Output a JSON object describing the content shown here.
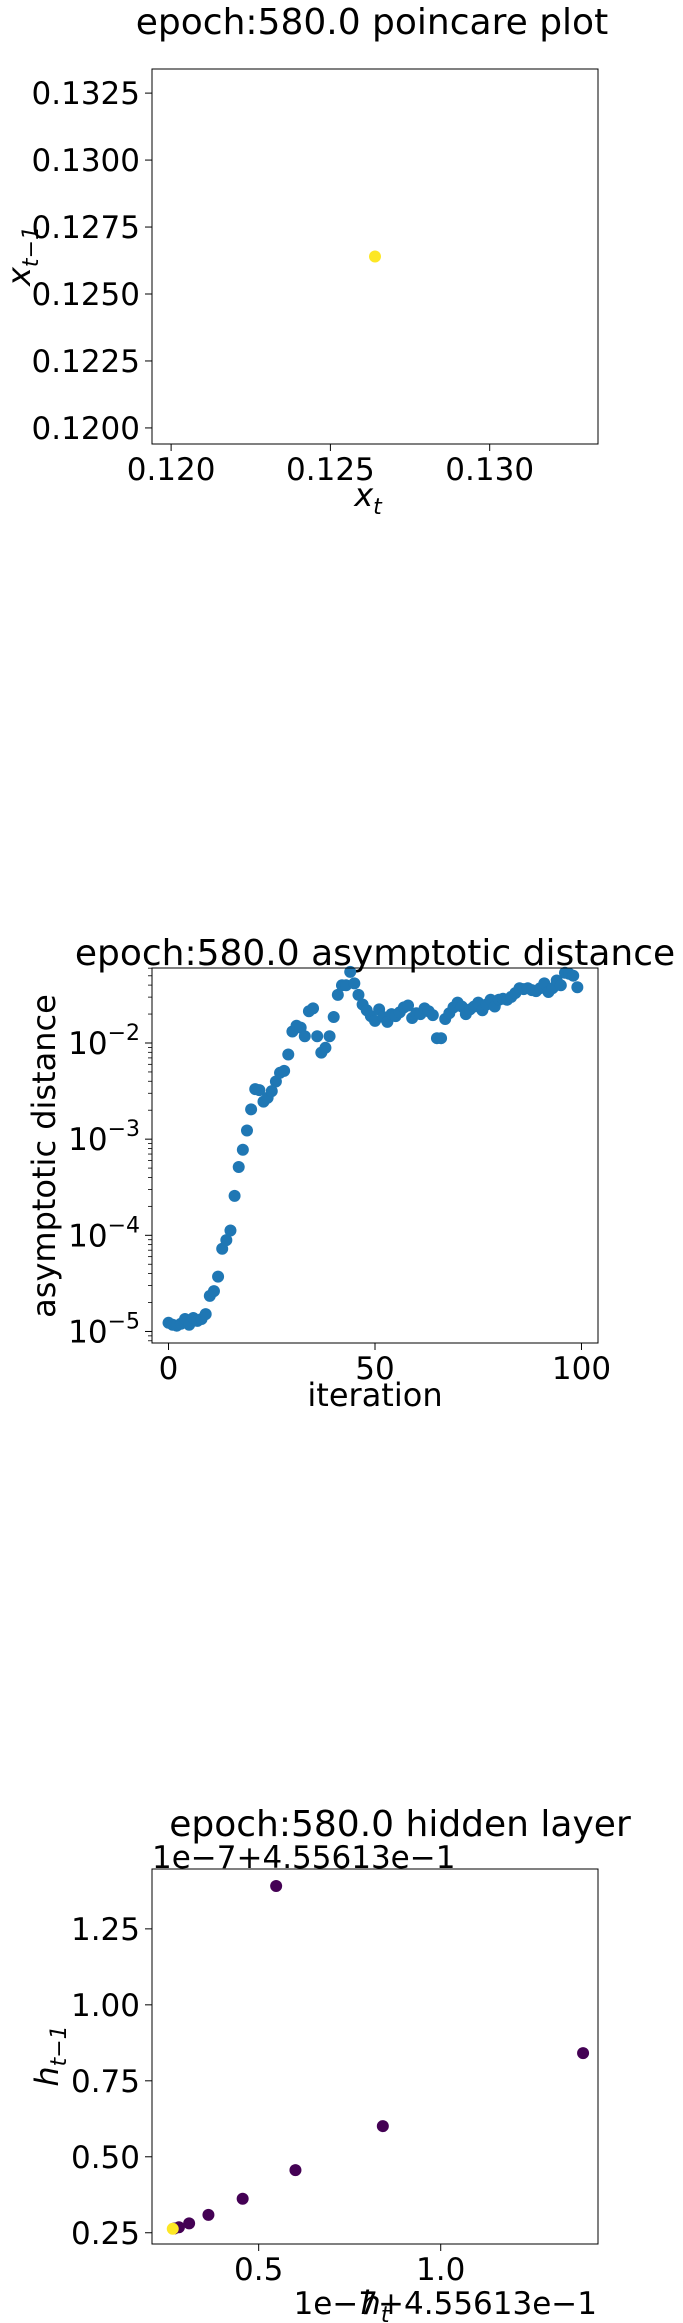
{
  "colors": {
    "yellow": "#fde725",
    "blue": "#1f77b4",
    "purple": "#440154"
  },
  "chart_data": [
    {
      "type": "scatter",
      "title": "epoch:580.0 poincare plot",
      "xlabel": "x",
      "xlabel_sub": "t",
      "ylabel": "x",
      "ylabel_sub": "t−1",
      "xlim": [
        0.1194,
        0.1334
      ],
      "ylim": [
        0.1194,
        0.1334
      ],
      "xticks": [
        0.12,
        0.125,
        0.13
      ],
      "xtick_labels": [
        "0.120",
        "0.125",
        "0.130"
      ],
      "yticks": [
        0.12,
        0.1225,
        0.125,
        0.1275,
        0.13,
        0.1325
      ],
      "ytick_labels": [
        "0.1200",
        "0.1225",
        "0.1250",
        "0.1275",
        "0.1300",
        "0.1325"
      ],
      "points": [
        {
          "x": 0.1264,
          "y": 0.1264,
          "color": "yellow"
        }
      ]
    },
    {
      "type": "scatter",
      "title": "epoch:580.0 asymptotic distance",
      "xlabel": "iteration",
      "ylabel": "asymptotic distance",
      "yscale": "log",
      "xlim": [
        -4,
        104
      ],
      "ylim_log10": [
        -5.12,
        -1.22
      ],
      "xticks": [
        0,
        50,
        100
      ],
      "xtick_labels": [
        "0",
        "50",
        "100"
      ],
      "yticks_log10": [
        -5,
        -4,
        -3,
        -2
      ],
      "ytick_base": "10",
      "ytick_exponents": [
        "−5",
        "−4",
        "−3",
        "−2"
      ],
      "series_color": "blue",
      "x": [
        0,
        1,
        2,
        3,
        4,
        5,
        6,
        7,
        8,
        9,
        10,
        11,
        12,
        13,
        14,
        15,
        16,
        17,
        18,
        19,
        20,
        21,
        22,
        23,
        24,
        25,
        26,
        27,
        28,
        29,
        30,
        31,
        32,
        33,
        34,
        35,
        36,
        37,
        38,
        39,
        40,
        41,
        42,
        43,
        44,
        45,
        46,
        47,
        48,
        49,
        50,
        51,
        52,
        53,
        54,
        55,
        56,
        57,
        58,
        59,
        60,
        61,
        62,
        63,
        64,
        65,
        66,
        67,
        68,
        69,
        70,
        71,
        72,
        73,
        74,
        75,
        76,
        77,
        78,
        79,
        80,
        81,
        82,
        83,
        84,
        85,
        86,
        87,
        88,
        89,
        90,
        91,
        92,
        93,
        94,
        95,
        96,
        97,
        98,
        99
      ],
      "y_log10": [
        -4.91,
        -4.93,
        -4.94,
        -4.92,
        -4.87,
        -4.93,
        -4.86,
        -4.89,
        -4.87,
        -4.82,
        -4.63,
        -4.58,
        -4.43,
        -4.14,
        -4.05,
        -3.95,
        -3.59,
        -3.29,
        -3.11,
        -2.91,
        -2.69,
        -2.48,
        -2.49,
        -2.61,
        -2.57,
        -2.5,
        -2.4,
        -2.31,
        -2.29,
        -2.12,
        -1.88,
        -1.82,
        -1.84,
        -1.93,
        -1.67,
        -1.64,
        -1.93,
        -2.1,
        -2.05,
        -1.93,
        -1.73,
        -1.5,
        -1.4,
        -1.4,
        -1.26,
        -1.38,
        -1.5,
        -1.6,
        -1.66,
        -1.72,
        -1.77,
        -1.65,
        -1.73,
        -1.78,
        -1.7,
        -1.72,
        -1.68,
        -1.63,
        -1.61,
        -1.74,
        -1.69,
        -1.7,
        -1.64,
        -1.67,
        -1.71,
        -1.95,
        -1.95,
        -1.75,
        -1.69,
        -1.63,
        -1.58,
        -1.62,
        -1.7,
        -1.65,
        -1.62,
        -1.58,
        -1.66,
        -1.6,
        -1.55,
        -1.62,
        -1.55,
        -1.54,
        -1.55,
        -1.52,
        -1.48,
        -1.43,
        -1.44,
        -1.43,
        -1.45,
        -1.46,
        -1.43,
        -1.38,
        -1.47,
        -1.43,
        -1.35,
        -1.4,
        -1.27,
        -1.28,
        -1.3,
        -1.42
      ]
    },
    {
      "type": "scatter",
      "title": "epoch:580.0 hidden layer",
      "offset_text": "1e−7+4.55613e−1",
      "xlabel": "h",
      "xlabel_sub": "t",
      "ylabel": "h",
      "ylabel_sub": "t−1",
      "xlim": [
        0.207,
        1.432
      ],
      "ylim": [
        0.213,
        1.447
      ],
      "xticks": [
        0.5,
        1.0
      ],
      "xtick_labels": [
        "0.5",
        "1.0"
      ],
      "yticks": [
        0.25,
        0.5,
        0.75,
        1.0,
        1.25
      ],
      "ytick_labels": [
        "0.25",
        "0.50",
        "0.75",
        "1.00",
        "1.25"
      ],
      "points": [
        {
          "x": 0.548,
          "y": 1.391,
          "color": "purple"
        },
        {
          "x": 1.391,
          "y": 0.841,
          "color": "purple"
        },
        {
          "x": 0.841,
          "y": 0.601,
          "color": "purple"
        },
        {
          "x": 0.601,
          "y": 0.456,
          "color": "purple"
        },
        {
          "x": 0.456,
          "y": 0.362,
          "color": "purple"
        },
        {
          "x": 0.362,
          "y": 0.309,
          "color": "purple"
        },
        {
          "x": 0.309,
          "y": 0.281,
          "color": "purple"
        },
        {
          "x": 0.281,
          "y": 0.268,
          "color": "purple"
        },
        {
          "x": 0.268,
          "y": 0.264,
          "color": "purple"
        },
        {
          "x": 0.264,
          "y": 0.263,
          "color": "yellow"
        }
      ]
    }
  ]
}
